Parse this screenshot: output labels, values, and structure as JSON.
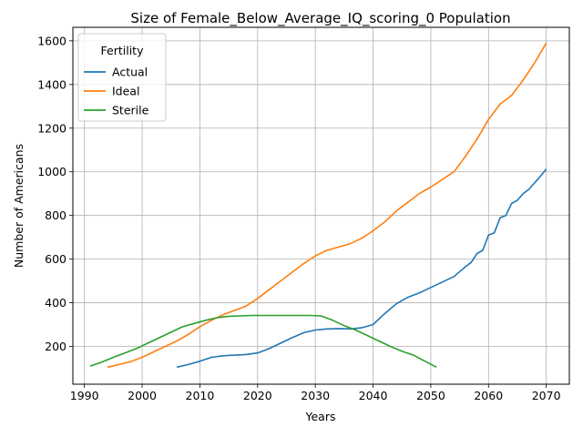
{
  "chart_data": {
    "type": "line",
    "title": "Size of Female_Below_Average_IQ_scoring_0 Population",
    "xlabel": "Years",
    "ylabel": "Number of Americans",
    "xlim": [
      1988,
      2074
    ],
    "ylim": [
      27,
      1662
    ],
    "xticks": [
      1990,
      2000,
      2010,
      2020,
      2030,
      2040,
      2050,
      2060,
      2070
    ],
    "yticks": [
      200,
      400,
      600,
      800,
      1000,
      1200,
      1400,
      1600
    ],
    "grid": true,
    "legend": {
      "title": "Fertility",
      "position": "upper-left"
    },
    "series": [
      {
        "name": "Actual",
        "color": "#1f77b4",
        "x": [
          2006,
          2008,
          2010,
          2012,
          2014,
          2016,
          2018,
          2020,
          2022,
          2024,
          2026,
          2028,
          2030,
          2032,
          2034,
          2036,
          2038,
          2040,
          2042,
          2044,
          2046,
          2048,
          2050,
          2052,
          2054,
          2056,
          2057,
          2058,
          2059,
          2060,
          2061,
          2062,
          2063,
          2064,
          2065,
          2066,
          2067,
          2068,
          2069,
          2070
        ],
        "y": [
          105,
          117,
          132,
          150,
          157,
          160,
          163,
          170,
          190,
          215,
          240,
          263,
          275,
          280,
          282,
          280,
          285,
          300,
          350,
          395,
          425,
          445,
          470,
          495,
          520,
          565,
          585,
          625,
          640,
          710,
          720,
          790,
          800,
          855,
          870,
          900,
          920,
          950,
          980,
          1012
        ]
      },
      {
        "name": "Ideal",
        "color": "#ff7f0e",
        "x": [
          1994,
          1996,
          1998,
          2000,
          2002,
          2004,
          2006,
          2008,
          2010,
          2012,
          2014,
          2016,
          2018,
          2020,
          2022,
          2024,
          2026,
          2028,
          2030,
          2032,
          2034,
          2036,
          2038,
          2040,
          2042,
          2044,
          2046,
          2048,
          2050,
          2052,
          2054,
          2056,
          2058,
          2060,
          2062,
          2064,
          2066,
          2068,
          2070
        ],
        "y": [
          105,
          117,
          130,
          150,
          175,
          200,
          225,
          255,
          290,
          320,
          345,
          365,
          385,
          420,
          460,
          500,
          540,
          580,
          615,
          640,
          655,
          670,
          695,
          730,
          770,
          820,
          860,
          900,
          930,
          965,
          1000,
          1070,
          1150,
          1240,
          1310,
          1350,
          1420,
          1500,
          1590
        ]
      },
      {
        "name": "Sterile",
        "color": "#2ca02c",
        "x": [
          1991,
          1993,
          1995,
          1997,
          1999,
          2001,
          2003,
          2005,
          2007,
          2009,
          2011,
          2013,
          2015,
          2017,
          2019,
          2021,
          2023,
          2025,
          2027,
          2029,
          2031,
          2033,
          2035,
          2037,
          2039,
          2041,
          2043,
          2045,
          2047,
          2049,
          2051
        ],
        "y": [
          110,
          128,
          150,
          170,
          190,
          215,
          240,
          265,
          290,
          305,
          320,
          332,
          338,
          340,
          342,
          342,
          342,
          342,
          342,
          342,
          340,
          320,
          295,
          275,
          250,
          225,
          200,
          178,
          160,
          132,
          105
        ]
      }
    ]
  }
}
